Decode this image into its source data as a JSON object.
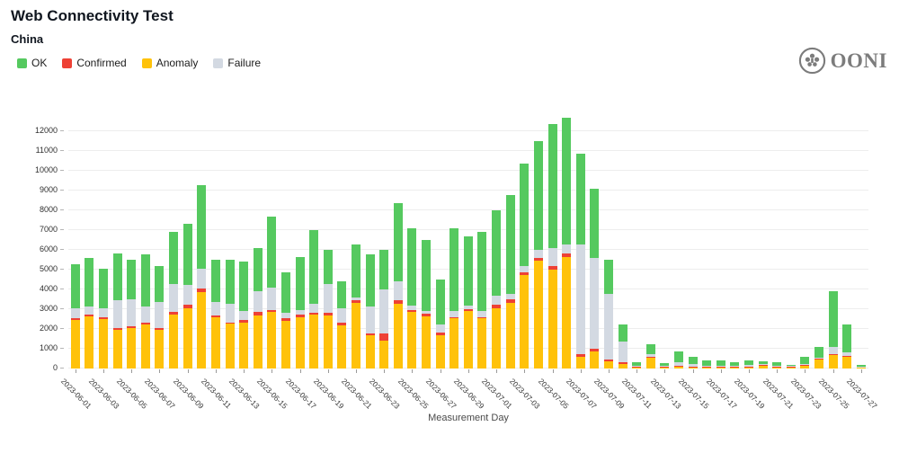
{
  "page_title": "Web Connectivity Test",
  "page_subtitle": "China",
  "logo": {
    "text": "OONI",
    "icon": "ooni-flower-icon"
  },
  "legend": {
    "items": [
      {
        "label": "OK",
        "color": "#55c95f"
      },
      {
        "label": "Confirmed",
        "color": "#ee4135"
      },
      {
        "label": "Anomaly",
        "color": "#ffc20a"
      },
      {
        "label": "Failure",
        "color": "#d3d9e2"
      }
    ]
  },
  "chart_data": {
    "type": "bar",
    "stacked": true,
    "title": "Web Connectivity Test",
    "subtitle": "China",
    "xlabel": "Measurement Day",
    "ylabel": "",
    "ylim": [
      0,
      12700
    ],
    "yticks": [
      0,
      1000,
      2000,
      3000,
      4000,
      5000,
      6000,
      7000,
      8000,
      9000,
      10000,
      11000,
      12000
    ],
    "grid": true,
    "legend_position": "top-left",
    "x_tick_every": 2,
    "x": [
      "2023-06-01",
      "2023-06-02",
      "2023-06-03",
      "2023-06-04",
      "2023-06-05",
      "2023-06-06",
      "2023-06-07",
      "2023-06-08",
      "2023-06-09",
      "2023-06-10",
      "2023-06-11",
      "2023-06-12",
      "2023-06-13",
      "2023-06-14",
      "2023-06-15",
      "2023-06-16",
      "2023-06-17",
      "2023-06-18",
      "2023-06-19",
      "2023-06-20",
      "2023-06-21",
      "2023-06-22",
      "2023-06-23",
      "2023-06-24",
      "2023-06-25",
      "2023-06-26",
      "2023-06-27",
      "2023-06-28",
      "2023-06-29",
      "2023-06-30",
      "2023-07-01",
      "2023-07-02",
      "2023-07-03",
      "2023-07-04",
      "2023-07-05",
      "2023-07-06",
      "2023-07-07",
      "2023-07-08",
      "2023-07-09",
      "2023-07-10",
      "2023-07-11",
      "2023-07-12",
      "2023-07-13",
      "2023-07-14",
      "2023-07-15",
      "2023-07-16",
      "2023-07-17",
      "2023-07-18",
      "2023-07-19",
      "2023-07-20",
      "2023-07-21",
      "2023-07-22",
      "2023-07-23",
      "2023-07-24",
      "2023-07-25",
      "2023-07-26",
      "2023-07-27"
    ],
    "series": [
      {
        "name": "Anomaly",
        "color": "#ffc20a",
        "values": [
          2450,
          2660,
          2500,
          1950,
          2050,
          2210,
          1950,
          2750,
          3050,
          3850,
          2610,
          2260,
          2300,
          2700,
          2850,
          2430,
          2610,
          2720,
          2700,
          2180,
          3330,
          1690,
          1410,
          3260,
          2890,
          2660,
          1690,
          2530,
          2920,
          2530,
          3070,
          3340,
          4720,
          5460,
          5000,
          5640,
          600,
          850,
          350,
          250,
          40,
          550,
          60,
          100,
          60,
          50,
          50,
          40,
          50,
          120,
          40,
          60,
          150,
          450,
          700,
          600,
          10
        ]
      },
      {
        "name": "Confirmed",
        "color": "#ee4135",
        "values": [
          80,
          80,
          80,
          100,
          80,
          100,
          80,
          100,
          190,
          200,
          80,
          80,
          150,
          170,
          120,
          100,
          100,
          110,
          110,
          120,
          120,
          70,
          350,
          190,
          60,
          100,
          150,
          80,
          100,
          80,
          160,
          160,
          150,
          150,
          180,
          180,
          150,
          150,
          100,
          80,
          20,
          50,
          50,
          20,
          20,
          20,
          20,
          40,
          20,
          20,
          10,
          40,
          20,
          30,
          50,
          30,
          0
        ]
      },
      {
        "name": "Failure",
        "color": "#d3d9e2",
        "values": [
          520,
          410,
          490,
          1390,
          1370,
          840,
          1340,
          1450,
          990,
          1000,
          690,
          920,
          450,
          1030,
          1130,
          310,
          240,
          430,
          1490,
          770,
          130,
          1390,
          2260,
          970,
          240,
          160,
          390,
          310,
          160,
          310,
          460,
          270,
          310,
          380,
          920,
          480,
          5550,
          4600,
          3350,
          1020,
          60,
          150,
          20,
          180,
          120,
          50,
          50,
          40,
          80,
          40,
          50,
          10,
          50,
          70,
          350,
          170,
          10
        ]
      },
      {
        "name": "OK",
        "color": "#55c95f",
        "values": [
          2250,
          2450,
          1980,
          2380,
          2000,
          2630,
          1830,
          2600,
          3080,
          4250,
          2150,
          2240,
          2500,
          2200,
          3580,
          2010,
          2700,
          3740,
          1700,
          1330,
          2720,
          2650,
          1980,
          3980,
          3910,
          3580,
          2270,
          4180,
          3520,
          3980,
          4310,
          5030,
          5220,
          5510,
          6300,
          6400,
          4600,
          3500,
          1700,
          900,
          180,
          500,
          120,
          550,
          370,
          270,
          260,
          180,
          230,
          150,
          200,
          40,
          330,
          550,
          2800,
          1400,
          80
        ]
      }
    ]
  }
}
